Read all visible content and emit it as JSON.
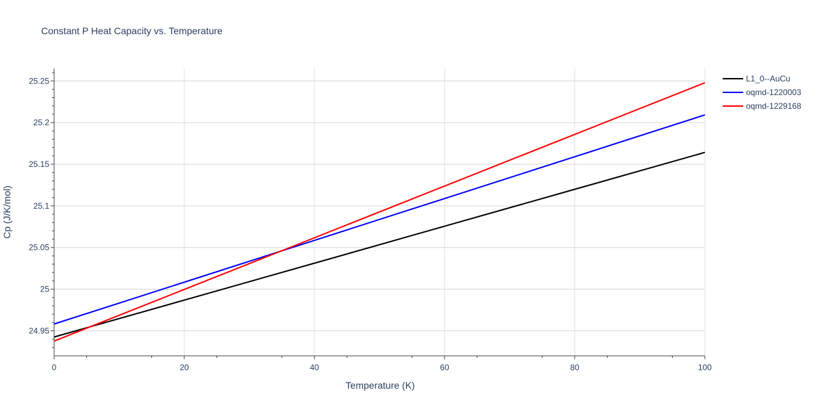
{
  "chart_data": {
    "type": "line",
    "title": "Constant P Heat Capacity vs. Temperature",
    "xlabel": "Temperature (K)",
    "ylabel": "Cp (J/K/mol)",
    "xlim": [
      0,
      100
    ],
    "ylim": [
      24.92,
      25.265
    ],
    "xticks": [
      0,
      20,
      40,
      60,
      80,
      100
    ],
    "xtick_labels": [
      "0",
      "20",
      "40",
      "60",
      "80",
      "100"
    ],
    "yticks": [
      24.95,
      25,
      25.05,
      25.1,
      25.15,
      25.2,
      25.25
    ],
    "ytick_labels": [
      "24.95",
      "25",
      "25.05",
      "25.1",
      "25.15",
      "25.2",
      "25.25"
    ],
    "grid": true,
    "legend_position": "top-right",
    "x": [
      0,
      20,
      40,
      60,
      80,
      100
    ],
    "series": [
      {
        "name": "L1_0--AuCu",
        "color": "#000000",
        "values": [
          24.9426,
          24.9869,
          25.0312,
          25.0756,
          25.1199,
          25.1642
        ]
      },
      {
        "name": "oqmd-1220003",
        "color": "#0000ff",
        "values": [
          24.9582,
          25.0084,
          25.0586,
          25.1088,
          25.159,
          25.2092
        ]
      },
      {
        "name": "oqmd-1229168",
        "color": "#ff0000",
        "values": [
          24.9377,
          24.9997,
          25.0617,
          25.1238,
          25.1858,
          25.2478
        ]
      }
    ]
  }
}
